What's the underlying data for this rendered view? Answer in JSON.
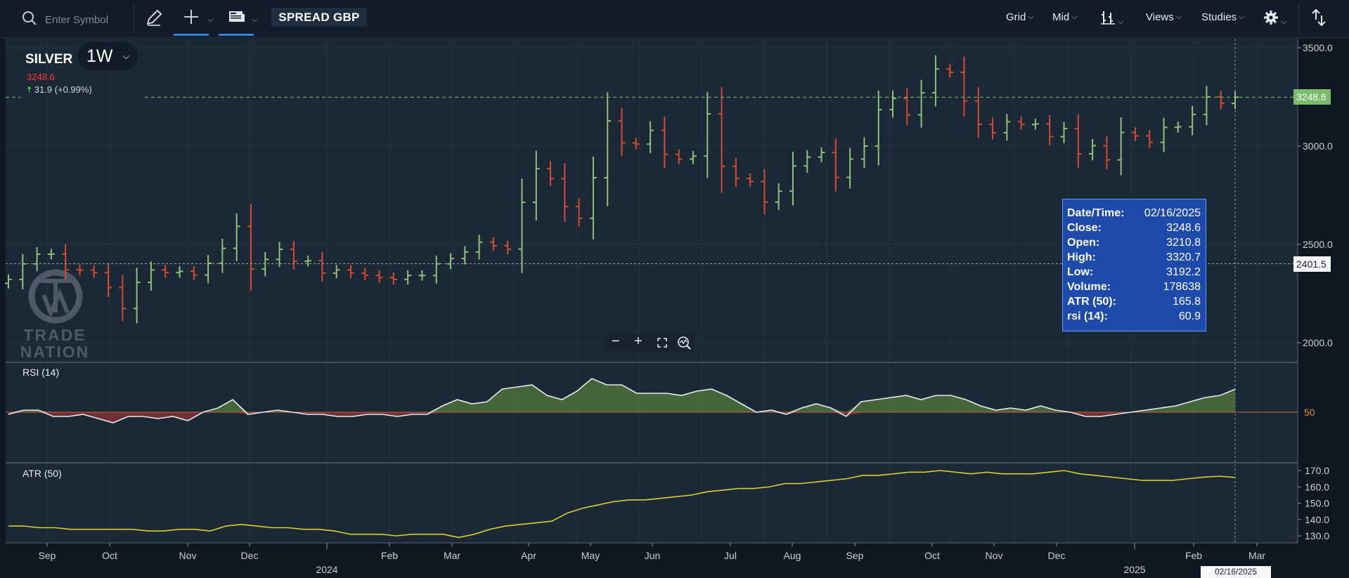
{
  "toolbar": {
    "search_placeholder": "Enter Symbol",
    "search_icon": "search-icon",
    "draw_icon": "pencil-icon",
    "crosshair_icon": "crosshair-icon",
    "news_icon": "newspaper-icon",
    "spread_label": "SPREAD GBP",
    "grid_label": "Grid",
    "mid_label": "Mid",
    "chart_type_icon": "bar-chart-icon",
    "views_label": "Views",
    "studies_label": "Studies",
    "settings_icon": "gear-icon",
    "share_icon": "share-icon",
    "accent_color": "#2f86d6"
  },
  "legend": {
    "symbol": "SILVER",
    "timeframe": "1W",
    "last_price": "3248.6",
    "change": "31.9 (+0.99%)",
    "change_arrow_icon": "up-arrow-icon",
    "logo_text_1": "TRADE",
    "logo_text_2": "NATION"
  },
  "tooltip": {
    "rows": [
      {
        "k": "Date/Time:",
        "v": "02/16/2025"
      },
      {
        "k": "Close:",
        "v": "3248.6"
      },
      {
        "k": "Open:",
        "v": "3210.8"
      },
      {
        "k": "High:",
        "v": "3320.7"
      },
      {
        "k": "Low:",
        "v": "3192.2"
      },
      {
        "k": "Volume:",
        "v": "178638"
      },
      {
        "k": "ATR (50):",
        "v": "165.8"
      },
      {
        "k": "rsi (14):",
        "v": "60.9"
      }
    ]
  },
  "zoom": {
    "minus": "−",
    "plus": "+",
    "fit_icon": "expand-icon",
    "reset_icon": "zoom-reset-icon"
  },
  "panes": {
    "rsi_label": "RSI (14)",
    "atr_label": "ATR (50)",
    "rsi_mid": "50"
  },
  "tags": {
    "last_price": "3248.6",
    "crosshair_price": "2401.5",
    "crosshair_date": "02/16/2025"
  },
  "colors": {
    "up": "#8fbf7a",
    "down": "#d44a32",
    "last_price_tag": "#7bbd6c",
    "atr_line": "#d8cf2d",
    "rsi_fill": "#4d6b3c"
  },
  "chart_data": {
    "type": "line",
    "title": "",
    "price_axis": {
      "ticks": [
        3500,
        3000,
        2500,
        2000
      ]
    },
    "x_ticks": [
      "Sep",
      "Oct",
      "Nov",
      "Dec",
      "Feb",
      "Mar",
      "Apr",
      "May",
      "Jun",
      "Jul",
      "Aug",
      "Sep",
      "Oct",
      "Nov",
      "Dec",
      "Feb",
      "Mar"
    ],
    "year_labels": [
      "2024",
      "2025"
    ],
    "series": [
      {
        "name": "SILVER",
        "type": "ohlc",
        "values": [
          2322,
          2401,
          2450,
          2451,
          2371,
          2369,
          2356,
          2281,
          2174,
          2307,
          2370,
          2357,
          2363,
          2344,
          2404,
          2480,
          2592,
          2375,
          2424,
          2475,
          2414,
          2417,
          2354,
          2370,
          2354,
          2343,
          2331,
          2322,
          2342,
          2342,
          2401,
          2428,
          2461,
          2511,
          2493,
          2476,
          2714,
          2885,
          2834,
          2693,
          2633,
          2839,
          3128,
          3016,
          3010,
          3080,
          2958,
          2934,
          2949,
          3164,
          2897,
          2835,
          2820,
          2715,
          2771,
          2899,
          2944,
          2967,
          2841,
          2934,
          3000,
          3185,
          3242,
          3159,
          3271,
          3392,
          3375,
          3230,
          3111,
          3068,
          3124,
          3110,
          3113,
          3048,
          3089,
          2961,
          3002,
          2930,
          3069,
          3052,
          3019,
          3095,
          3098,
          3161,
          3251,
          3217,
          3248.6
        ]
      },
      {
        "name": "RSI (14)",
        "values": [
          49,
          51,
          51,
          48,
          48,
          49,
          47,
          45,
          48,
          48,
          47,
          48,
          46,
          50,
          52,
          56,
          49,
          50,
          51,
          50,
          49,
          49,
          48,
          48,
          49,
          49,
          48,
          49,
          49,
          53,
          56,
          54,
          55,
          61,
          62,
          63,
          58,
          56,
          60,
          66,
          63,
          63,
          59,
          59,
          59,
          58,
          60,
          61,
          58,
          54,
          50,
          51,
          49,
          52,
          54,
          52,
          48,
          55,
          56,
          57,
          58,
          56,
          58,
          58,
          56,
          53,
          51,
          52,
          51,
          53,
          51,
          50,
          48,
          48,
          49,
          50,
          51,
          52,
          53,
          55,
          57,
          58,
          60.9
        ]
      },
      {
        "name": "ATR (50)",
        "values": [
          136,
          136,
          135,
          135,
          134,
          134,
          134,
          134,
          134,
          133,
          133,
          134,
          134,
          133,
          136,
          137,
          136,
          135,
          135,
          134,
          134,
          133,
          131,
          131,
          131,
          130,
          131,
          131,
          131,
          129,
          131,
          134,
          136,
          137,
          138,
          139,
          144,
          147,
          149,
          151,
          152,
          152,
          153,
          154,
          155,
          157,
          158,
          159,
          159,
          160,
          162,
          162,
          163,
          164,
          165,
          167,
          167,
          168,
          169,
          169,
          170,
          169,
          168,
          169,
          168,
          168,
          168,
          169,
          170,
          168,
          167,
          166,
          165,
          164,
          164,
          164,
          165,
          166,
          166.5,
          165.8
        ]
      }
    ],
    "rsi_axis": {
      "ticks": [
        50
      ]
    },
    "atr_axis": {
      "ticks": [
        170.0,
        160.0,
        150.0,
        140.0,
        130.0
      ]
    },
    "grid": true
  }
}
